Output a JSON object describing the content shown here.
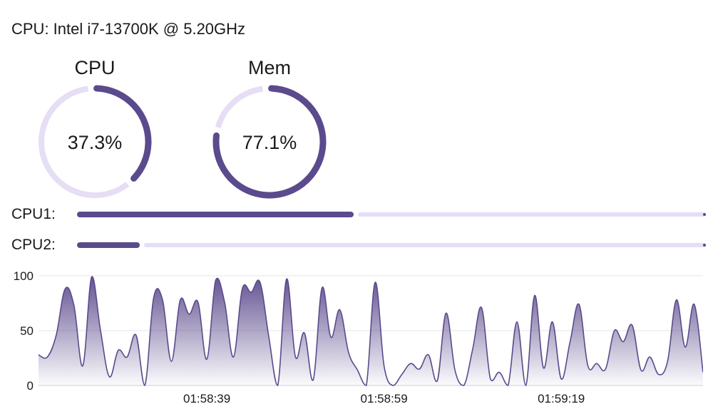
{
  "header": {
    "cpu_info": "CPU: Intel i7-13700K @ 5.20GHz"
  },
  "gauges": [
    {
      "title": "CPU",
      "value_label": "37.3%",
      "fraction": 0.373
    },
    {
      "title": "Mem",
      "value_label": "77.1%",
      "fraction": 0.771
    }
  ],
  "cores": [
    {
      "label": "CPU1:",
      "fraction": 0.44
    },
    {
      "label": "CPU2:",
      "fraction": 0.1
    }
  ],
  "colors": {
    "accent": "#5b4a8c",
    "track": "#e5def5",
    "grid": "#e6e6e6"
  },
  "chart_data": {
    "type": "area",
    "title": "",
    "xlabel": "",
    "ylabel": "",
    "ylim": [
      0,
      100
    ],
    "yticks": [
      0,
      50,
      100
    ],
    "xtick_labels": [
      {
        "label": "01:58:39",
        "x": 10
      },
      {
        "label": "01:58:59",
        "x": 30
      },
      {
        "label": "01:59:19",
        "x": 50
      }
    ],
    "grid": true,
    "x": [
      -9,
      -8,
      -7,
      -6,
      -5,
      -4,
      -3,
      -2,
      -1,
      0,
      1,
      2,
      3,
      4,
      5,
      6,
      7,
      8,
      9,
      10,
      11,
      12,
      13,
      14,
      15,
      16,
      17,
      18,
      19,
      20,
      21,
      22,
      23,
      24,
      25,
      26,
      27,
      28,
      29,
      30,
      31,
      32,
      33,
      34,
      35,
      36,
      37,
      38,
      39,
      40,
      41,
      42,
      43,
      44,
      45,
      46,
      47,
      48,
      49,
      50,
      51,
      52,
      53,
      54,
      55,
      56,
      57,
      58,
      59,
      60,
      61,
      62,
      63,
      64,
      65,
      66
    ],
    "series": [
      {
        "name": "",
        "values": [
          28,
          26,
          46,
          88,
          73,
          18,
          99,
          50,
          8,
          32,
          26,
          46,
          0,
          80,
          78,
          22,
          78,
          65,
          76,
          24,
          96,
          76,
          26,
          88,
          85,
          94,
          44,
          0,
          97,
          26,
          48,
          5,
          89,
          44,
          69,
          30,
          14,
          0,
          94,
          18,
          0,
          10,
          20,
          15,
          28,
          4,
          66,
          14,
          0,
          33,
          71,
          6,
          12,
          0,
          58,
          0,
          82,
          16,
          58,
          6,
          40,
          74,
          18,
          20,
          15,
          50,
          40,
          55,
          14,
          26,
          10,
          22,
          78,
          35,
          74,
          12
        ]
      }
    ]
  }
}
